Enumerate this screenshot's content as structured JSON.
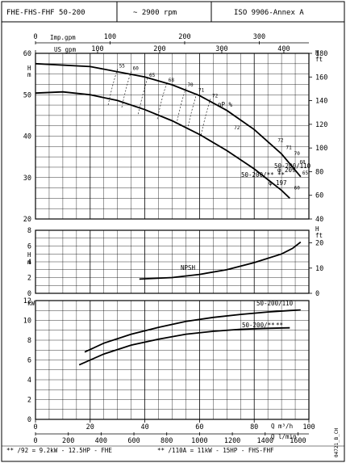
{
  "header": {
    "model": "FHE-FHS-FHF 50-200",
    "speed": "~ 2900 rpm",
    "standard": "ISO 9906-Annex A"
  },
  "footer": {
    "note_92": "** /92 = 9.2kW - 12.5HP - FHE",
    "note_110": "** /110A = 11kW - 15HP - FHS-FHF",
    "code": "04721_B_CH"
  },
  "colors": {
    "line": "#000000",
    "grid": "#000000",
    "background": "#ffffff"
  },
  "chart_data": [
    {
      "type": "line",
      "title": "Head",
      "top_axes": {
        "imp_gpm": {
          "label": "Imp.gpm",
          "ticks": [
            0,
            100,
            200,
            300
          ]
        },
        "us_gpm": {
          "label": "US gpm",
          "ticks": [
            0,
            100,
            200,
            300,
            400
          ]
        }
      },
      "left_axis": {
        "label": "H m",
        "range": [
          20,
          60
        ],
        "ticks": [
          20,
          30,
          40,
          50,
          60
        ]
      },
      "right_axis": {
        "label": "H ft",
        "range": [
          40,
          180
        ],
        "ticks": [
          40,
          60,
          80,
          100,
          120,
          140,
          160,
          180
        ]
      },
      "x_range": [
        0,
        100
      ],
      "grid": true,
      "series": [
        {
          "name": "50-200/110",
          "diameter_label": "209",
          "x": [
            0,
            20,
            40,
            50,
            60,
            70,
            80,
            90,
            97
          ],
          "y": [
            57.5,
            56.8,
            54.3,
            52.4,
            49.8,
            46.2,
            41.6,
            35.7,
            30.2
          ]
        },
        {
          "name": "50-200/**",
          "diameter_label": "197",
          "x": [
            0,
            10,
            20,
            30,
            40,
            50,
            60,
            70,
            80,
            90,
            93
          ],
          "y": [
            50.4,
            50.7,
            50.0,
            48.6,
            46.4,
            43.7,
            40.4,
            36.5,
            32.1,
            26.9,
            25.0
          ]
        }
      ],
      "efficiency_label": "ηP %",
      "efficiency_labels": [
        "55",
        "60",
        "65",
        "68",
        "70",
        "71",
        "72",
        "72",
        "72",
        "71",
        "70",
        "68",
        "65",
        "60"
      ]
    },
    {
      "type": "line",
      "title": "NPSH",
      "left_axis": {
        "label": "H m",
        "range": [
          0,
          8
        ],
        "ticks": [
          0,
          2,
          4,
          6,
          8
        ]
      },
      "right_axis": {
        "label": "H ft",
        "range": [
          0,
          25
        ],
        "ticks": [
          0,
          10,
          20
        ]
      },
      "x_range": [
        0,
        100
      ],
      "grid": true,
      "series": [
        {
          "name": "NPSH",
          "x": [
            38,
            50,
            60,
            70,
            80,
            90,
            94,
            97
          ],
          "y": [
            1.8,
            2.0,
            2.4,
            3.0,
            3.9,
            5.0,
            5.7,
            6.5
          ]
        }
      ]
    },
    {
      "type": "line",
      "title": "Power",
      "left_axis": {
        "label": "kW",
        "range": [
          0,
          12
        ],
        "ticks": [
          0,
          2,
          4,
          6,
          8,
          10,
          12
        ]
      },
      "x_axis": {
        "label": "Q m³/h",
        "range": [
          0,
          100
        ],
        "ticks": [
          0,
          20,
          40,
          60,
          80,
          100
        ]
      },
      "x_axis_2": {
        "label": "Q l/min",
        "ticks": [
          0,
          200,
          400,
          600,
          800,
          1000,
          1200,
          1400,
          1600
        ]
      },
      "grid": true,
      "series": [
        {
          "name": "50-200/110",
          "x": [
            18,
            25,
            35,
            45,
            55,
            65,
            75,
            85,
            93,
            97
          ],
          "y": [
            6.8,
            7.7,
            8.6,
            9.3,
            9.9,
            10.3,
            10.6,
            10.85,
            11.0,
            11.05
          ]
        },
        {
          "name": "50-200/**",
          "x": [
            16,
            25,
            35,
            45,
            55,
            65,
            75,
            85,
            93
          ],
          "y": [
            5.5,
            6.6,
            7.5,
            8.1,
            8.6,
            8.9,
            9.1,
            9.2,
            9.25
          ]
        }
      ]
    }
  ]
}
